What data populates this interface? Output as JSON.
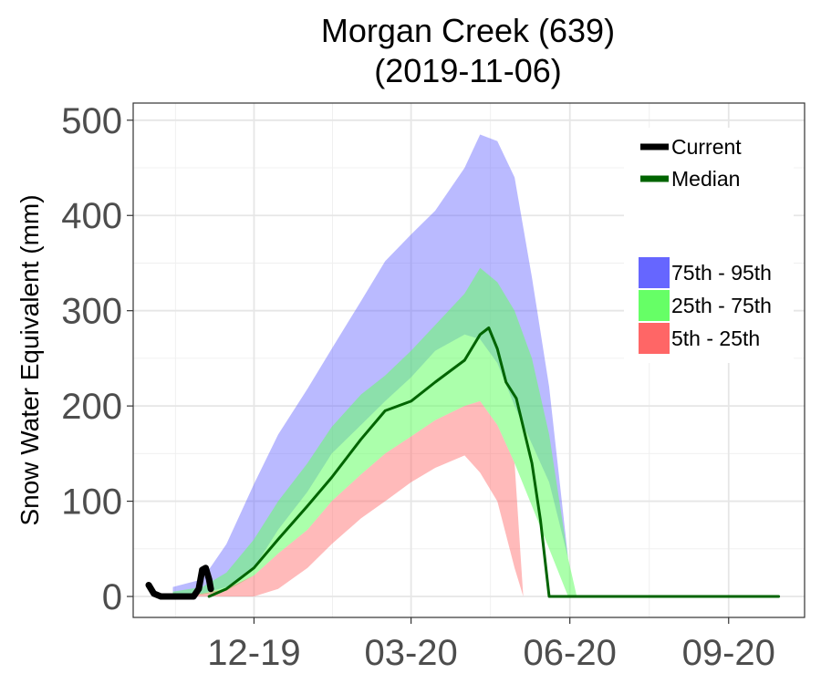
{
  "chart_data": {
    "type": "area",
    "title": "Morgan Creek (639)",
    "subtitle": "(2019-11-06)",
    "ylabel": "Snow Water Equivalent (mm)",
    "xlabel": "",
    "x_axis": {
      "min": "2019-10-01",
      "max": "2020-09-30",
      "ticks": [
        {
          "date": "2019-12-01",
          "label": "12-19"
        },
        {
          "date": "2020-03-01",
          "label": "03-20"
        },
        {
          "date": "2020-06-01",
          "label": "06-20"
        },
        {
          "date": "2020-09-01",
          "label": "09-20"
        }
      ]
    },
    "ylim": [
      -22,
      518
    ],
    "yticks": [
      0,
      100,
      200,
      300,
      400,
      500
    ],
    "grid": true,
    "legend_position": "top-right",
    "bands": [
      {
        "name": "75th - 95th",
        "color": "#6666ff",
        "opacity": 0.45,
        "x": [
          "2019-10-15",
          "2019-11-01",
          "2019-11-15",
          "2019-12-01",
          "2019-12-15",
          "2020-01-01",
          "2020-01-15",
          "2020-02-01",
          "2020-02-15",
          "2020-03-01",
          "2020-03-15",
          "2020-04-01",
          "2020-04-10",
          "2020-04-20",
          "2020-04-30",
          "2020-05-10",
          "2020-05-20",
          "2020-05-31",
          "2020-06-05",
          "2020-06-08"
        ],
        "lower": [
          2,
          3,
          10,
          30,
          70,
          110,
          150,
          180,
          205,
          230,
          258,
          275,
          270,
          245,
          200,
          160,
          120,
          40,
          0,
          0
        ],
        "upper": [
          10,
          18,
          55,
          118,
          170,
          218,
          260,
          310,
          352,
          380,
          405,
          450,
          485,
          478,
          440,
          335,
          220,
          40,
          0,
          0
        ]
      },
      {
        "name": "25th - 75th",
        "color": "#66ff66",
        "opacity": 0.55,
        "x": [
          "2019-10-15",
          "2019-11-01",
          "2019-11-15",
          "2019-12-01",
          "2019-12-15",
          "2020-01-01",
          "2020-01-15",
          "2020-02-01",
          "2020-02-15",
          "2020-03-01",
          "2020-03-15",
          "2020-04-01",
          "2020-04-10",
          "2020-04-20",
          "2020-04-30",
          "2020-05-10",
          "2020-05-20",
          "2020-05-31",
          "2020-06-05"
        ],
        "lower": [
          0,
          2,
          6,
          22,
          45,
          70,
          100,
          128,
          150,
          168,
          185,
          200,
          205,
          180,
          140,
          95,
          50,
          0,
          0
        ],
        "upper": [
          5,
          10,
          25,
          60,
          100,
          140,
          178,
          212,
          232,
          258,
          285,
          318,
          345,
          330,
          300,
          250,
          170,
          40,
          0
        ]
      },
      {
        "name": "5th - 25th",
        "color": "#ff6666",
        "opacity": 0.45,
        "x": [
          "2019-10-15",
          "2019-11-01",
          "2019-11-15",
          "2019-12-01",
          "2019-12-15",
          "2020-01-01",
          "2020-01-15",
          "2020-02-01",
          "2020-02-15",
          "2020-03-01",
          "2020-03-15",
          "2020-04-01",
          "2020-04-10",
          "2020-04-20",
          "2020-04-30",
          "2020-05-05"
        ],
        "lower": [
          0,
          0,
          0,
          0,
          8,
          30,
          55,
          82,
          100,
          120,
          135,
          148,
          130,
          100,
          30,
          0
        ],
        "upper": [
          2,
          3,
          8,
          22,
          45,
          70,
          100,
          128,
          150,
          168,
          185,
          200,
          205,
          180,
          140,
          0
        ]
      }
    ],
    "series": [
      {
        "name": "Median",
        "color": "#006400",
        "x": [
          "2019-11-05",
          "2019-11-15",
          "2019-12-01",
          "2019-12-15",
          "2020-01-01",
          "2020-01-15",
          "2020-02-01",
          "2020-02-15",
          "2020-03-01",
          "2020-03-15",
          "2020-04-01",
          "2020-04-10",
          "2020-04-15",
          "2020-04-20",
          "2020-04-25",
          "2020-05-01",
          "2020-05-10",
          "2020-05-15",
          "2020-05-20",
          "2020-05-25",
          "2020-05-31",
          "2020-06-10",
          "2020-07-01",
          "2020-08-01",
          "2020-09-01",
          "2020-09-30"
        ],
        "values": [
          0,
          8,
          30,
          60,
          95,
          125,
          165,
          195,
          205,
          225,
          248,
          275,
          282,
          260,
          225,
          208,
          140,
          80,
          0,
          0,
          0,
          0,
          0,
          0,
          0,
          0
        ]
      },
      {
        "name": "Current",
        "color": "#000000",
        "x": [
          "2019-10-01",
          "2019-10-04",
          "2019-10-08",
          "2019-10-12",
          "2019-10-16",
          "2019-10-20",
          "2019-10-24",
          "2019-10-27",
          "2019-10-30",
          "2019-11-01",
          "2019-11-03",
          "2019-11-05",
          "2019-11-06"
        ],
        "values": [
          12,
          3,
          0,
          0,
          0,
          0,
          0,
          0,
          8,
          28,
          30,
          18,
          8
        ]
      }
    ],
    "legend": [
      {
        "label": "Current",
        "kind": "line",
        "color": "#000000"
      },
      {
        "label": "Median",
        "kind": "line",
        "color": "#006400"
      },
      {
        "label": "75th - 95th",
        "kind": "fill",
        "color": "#6666ff"
      },
      {
        "label": "25th - 75th",
        "kind": "fill",
        "color": "#66ff66"
      },
      {
        "label": "5th - 25th",
        "kind": "fill",
        "color": "#ff6666"
      }
    ]
  }
}
